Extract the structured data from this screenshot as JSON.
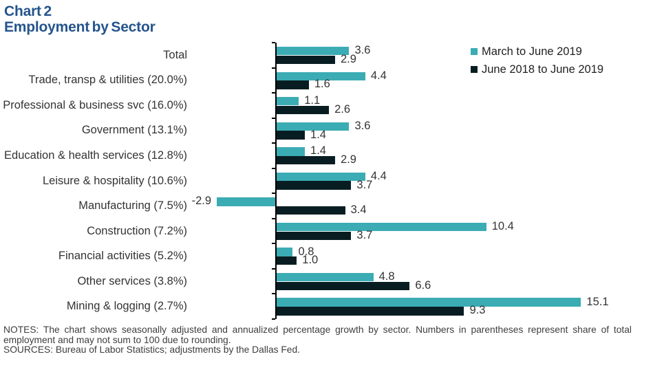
{
  "title": {
    "line1": "Chart 2",
    "line2": "Employment by Sector",
    "color": "#24548C"
  },
  "legend": {
    "items": [
      {
        "label": "March to June 2019",
        "color": "#3BACB4"
      },
      {
        "label": "June 2018 to June 2019",
        "color": "#081D22"
      }
    ],
    "position": "top-right"
  },
  "chart_data": {
    "type": "bar",
    "orientation": "horizontal",
    "title": "Employment by Sector",
    "categories": [
      "Total",
      "Trade, transp & utilities (20.0%)",
      "Professional & business svc (16.0%)",
      "Government (13.1%)",
      "Education & health services (12.8%)",
      "Leisure & hospitality (10.6%)",
      "Manufacturing (7.5%)",
      "Construction (7.2%)",
      "Financial activities (5.2%)",
      "Other services (3.8%)",
      "Mining & logging (2.7%)"
    ],
    "series": [
      {
        "name": "March to June 2019",
        "color": "#3BACB4",
        "values": [
          3.6,
          4.4,
          1.1,
          3.6,
          1.4,
          4.4,
          -2.9,
          10.4,
          0.8,
          4.8,
          15.1
        ]
      },
      {
        "name": "June 2018 to June 2019",
        "color": "#081D22",
        "values": [
          2.9,
          1.6,
          2.6,
          1.4,
          2.9,
          3.7,
          3.4,
          3.7,
          1.0,
          6.6,
          9.3
        ]
      }
    ],
    "value_labels_shown": true,
    "value_decimals": 1,
    "grid": false,
    "legend_position": "top-right"
  },
  "notes": {
    "notes_text": "NOTES: The chart shows seasonally adjusted and annualized percentage growth by sector. Numbers in parentheses represent share of total employment and may not sum to 100 due to rounding.",
    "sources_text": "SOURCES: Bureau of Labor Statistics; adjustments by the Dallas Fed."
  }
}
